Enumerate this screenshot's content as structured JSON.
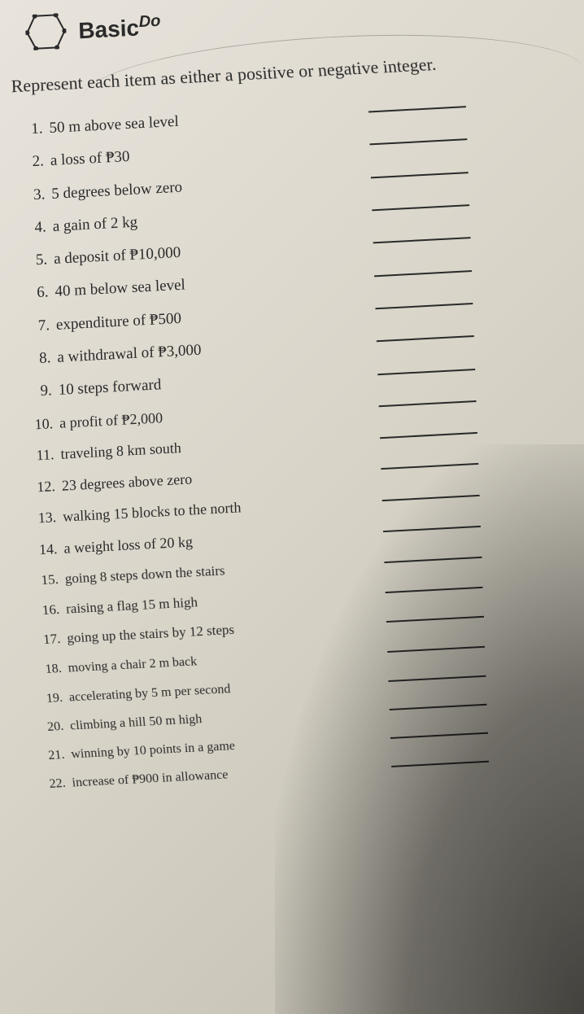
{
  "logo": {
    "scriptText": "Do",
    "mainText": "Basic"
  },
  "instruction": "Represent each item as either a positive or negative integer.",
  "items": [
    {
      "num": "1.",
      "text": "50 m above sea level"
    },
    {
      "num": "2.",
      "text": "a loss of ₱30"
    },
    {
      "num": "3.",
      "text": "5 degrees below zero"
    },
    {
      "num": "4.",
      "text": "a gain of 2 kg"
    },
    {
      "num": "5.",
      "text": "a deposit of ₱10,000"
    },
    {
      "num": "6.",
      "text": "40 m below sea level"
    },
    {
      "num": "7.",
      "text": "expenditure of ₱500"
    },
    {
      "num": "8.",
      "text": "a withdrawal of ₱3,000"
    },
    {
      "num": "9.",
      "text": "10 steps forward"
    },
    {
      "num": "10.",
      "text": "a profit of ₱2,000"
    },
    {
      "num": "11.",
      "text": "traveling 8 km south"
    },
    {
      "num": "12.",
      "text": "23 degrees above zero"
    },
    {
      "num": "13.",
      "text": "walking 15 blocks to the north"
    },
    {
      "num": "14.",
      "text": "a weight loss of 20 kg"
    },
    {
      "num": "15.",
      "text": "going 8 steps down the stairs"
    },
    {
      "num": "16.",
      "text": "raising a flag 15 m high"
    },
    {
      "num": "17.",
      "text": "going up the stairs by 12 steps"
    },
    {
      "num": "18.",
      "text": "moving a chair 2 m back"
    },
    {
      "num": "19.",
      "text": "accelerating by 5 m per second"
    },
    {
      "num": "20.",
      "text": "climbing a hill 50 m high"
    },
    {
      "num": "21.",
      "text": "winning by 10 points in a game"
    },
    {
      "num": "22.",
      "text": "increase of ₱900 in allowance"
    }
  ],
  "styling": {
    "background_gradient": [
      "#e8e4dc",
      "#d8d4c8",
      "#c0bcb0"
    ],
    "text_color": "#2a2a2a",
    "line_color": "#2a2a2a",
    "instruction_fontsize": 22,
    "item_fontsize": 19,
    "blank_line_width": 120,
    "page_rotation_deg": -2
  }
}
